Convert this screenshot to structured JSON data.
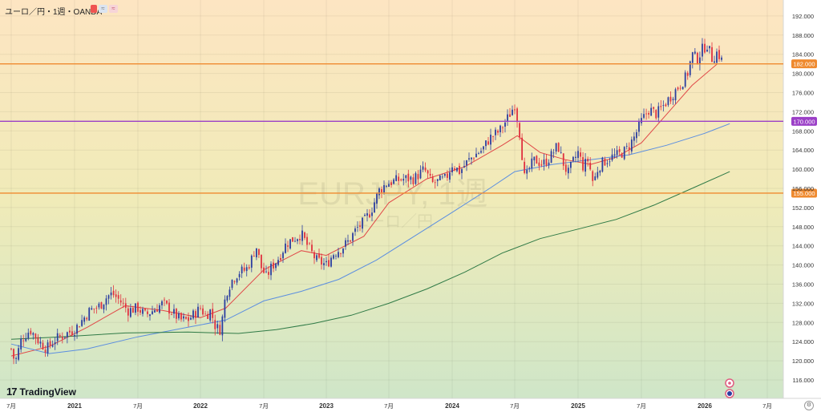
{
  "header": {
    "symbol_title": "ユーロ／円・1週・OANDA"
  },
  "logo": {
    "text": "TradingView"
  },
  "watermark": {
    "symbol": "EURJPY, 1週",
    "subtitle": "ユーロ／円"
  },
  "colors": {
    "bull": "#2b3ea0",
    "bear": "#e0303f",
    "ma_short": "#e04848",
    "ma_mid": "#5b8ee0",
    "ma_long": "#2f7a46",
    "line_orange": "#ef8a2f",
    "line_purple": "#9b40c7",
    "line_orange_low": "#ef8a2f",
    "bg_top": "#fde5c2",
    "bg_bottom": "#cfe6c8"
  },
  "chart_data": {
    "type": "candlestick",
    "symbol": "EURJPY",
    "timeframe": "1週",
    "source": "OANDA",
    "ylim": [
      113,
      193
    ],
    "y_ticks": [
      "116.000",
      "120.000",
      "124.000",
      "128.000",
      "132.000",
      "136.000",
      "140.000",
      "144.000",
      "148.000",
      "152.000",
      "156.000",
      "160.000",
      "164.000",
      "168.000",
      "172.000",
      "176.000",
      "180.000",
      "184.000",
      "188.000",
      "192.000"
    ],
    "x_ticks": [
      "7月",
      "2021",
      "7月",
      "2022",
      "7月",
      "2023",
      "7月",
      "2024",
      "7月",
      "2025",
      "7月",
      "2026",
      "7月"
    ],
    "horizontal_lines": [
      {
        "name": "upper-resistance",
        "value": 182.0,
        "label": "182.000",
        "color": "#ef8a2f"
      },
      {
        "name": "middle-line",
        "value": 170.0,
        "label": "170.000",
        "color": "#9b40c7"
      },
      {
        "name": "lower-support",
        "value": 155.0,
        "label": "155.000",
        "color": "#ef8a2f"
      }
    ],
    "close_path": [
      [
        2020.5,
        122.5
      ],
      [
        2020.53,
        119.5
      ],
      [
        2020.58,
        124.5
      ],
      [
        2020.65,
        126.5
      ],
      [
        2020.72,
        124.0
      ],
      [
        2020.78,
        122.5
      ],
      [
        2020.85,
        124.5
      ],
      [
        2020.92,
        125.5
      ],
      [
        2021.0,
        126.5
      ],
      [
        2021.06,
        128.5
      ],
      [
        2021.12,
        130.5
      ],
      [
        2021.2,
        131.5
      ],
      [
        2021.26,
        133.5
      ],
      [
        2021.3,
        134.0
      ],
      [
        2021.36,
        132.5
      ],
      [
        2021.42,
        130.5
      ],
      [
        2021.5,
        131.0
      ],
      [
        2021.56,
        129.5
      ],
      [
        2021.62,
        130.5
      ],
      [
        2021.7,
        132.0
      ],
      [
        2021.78,
        130.0
      ],
      [
        2021.84,
        128.5
      ],
      [
        2021.9,
        128.5
      ],
      [
        2021.96,
        130.0
      ],
      [
        2022.0,
        131.0
      ],
      [
        2022.04,
        129.5
      ],
      [
        2022.08,
        130.5
      ],
      [
        2022.12,
        127.0
      ],
      [
        2022.16,
        126.5
      ],
      [
        2022.2,
        134.0
      ],
      [
        2022.24,
        136.5
      ],
      [
        2022.3,
        138.5
      ],
      [
        2022.36,
        139.0
      ],
      [
        2022.4,
        141.0
      ],
      [
        2022.44,
        144.0
      ],
      [
        2022.48,
        139.5
      ],
      [
        2022.52,
        137.5
      ],
      [
        2022.56,
        139.5
      ],
      [
        2022.62,
        141.5
      ],
      [
        2022.68,
        144.5
      ],
      [
        2022.74,
        145.5
      ],
      [
        2022.8,
        146.5
      ],
      [
        2022.86,
        143.5
      ],
      [
        2022.92,
        141.0
      ],
      [
        2022.96,
        140.5
      ],
      [
        2023.0,
        140.0
      ],
      [
        2023.06,
        142.5
      ],
      [
        2023.12,
        143.5
      ],
      [
        2023.18,
        145.0
      ],
      [
        2023.24,
        147.5
      ],
      [
        2023.3,
        149.0
      ],
      [
        2023.36,
        151.5
      ],
      [
        2023.42,
        155.5
      ],
      [
        2023.48,
        157.0
      ],
      [
        2023.54,
        157.5
      ],
      [
        2023.62,
        158.0
      ],
      [
        2023.7,
        158.0
      ],
      [
        2023.78,
        160.0
      ],
      [
        2023.84,
        157.0
      ],
      [
        2023.9,
        157.5
      ],
      [
        2023.95,
        158.0
      ],
      [
        2024.0,
        161.0
      ],
      [
        2024.06,
        159.5
      ],
      [
        2024.12,
        161.5
      ],
      [
        2024.18,
        163.0
      ],
      [
        2024.24,
        164.0
      ],
      [
        2024.3,
        166.5
      ],
      [
        2024.38,
        168.0
      ],
      [
        2024.44,
        170.5
      ],
      [
        2024.5,
        173.5
      ],
      [
        2024.54,
        167.5
      ],
      [
        2024.58,
        157.5
      ],
      [
        2024.62,
        160.5
      ],
      [
        2024.66,
        162.0
      ],
      [
        2024.72,
        161.0
      ],
      [
        2024.78,
        162.5
      ],
      [
        2024.84,
        165.0
      ],
      [
        2024.88,
        161.5
      ],
      [
        2024.92,
        159.0
      ],
      [
        2024.96,
        161.5
      ],
      [
        2025.0,
        163.5
      ],
      [
        2025.04,
        160.5
      ],
      [
        2025.08,
        162.0
      ],
      [
        2025.12,
        157.0
      ],
      [
        2025.16,
        160.5
      ],
      [
        2025.2,
        161.5
      ],
      [
        2025.26,
        162.5
      ],
      [
        2025.32,
        163.0
      ],
      [
        2025.38,
        164.0
      ],
      [
        2025.44,
        166.5
      ],
      [
        2025.5,
        170.0
      ],
      [
        2025.56,
        172.5
      ],
      [
        2025.62,
        171.5
      ],
      [
        2025.68,
        173.5
      ],
      [
        2025.74,
        175.5
      ],
      [
        2025.8,
        177.5
      ],
      [
        2025.86,
        179.5
      ],
      [
        2025.9,
        184.0
      ],
      [
        2025.94,
        183.0
      ],
      [
        2025.98,
        185.0
      ],
      [
        2026.02,
        186.0
      ],
      [
        2026.06,
        183.0
      ],
      [
        2026.1,
        184.5
      ],
      [
        2026.14,
        182.5
      ]
    ],
    "series": [
      {
        "name": "MA-short",
        "points": [
          [
            2020.5,
            121.0
          ],
          [
            2020.8,
            123.0
          ],
          [
            2021.1,
            127.0
          ],
          [
            2021.4,
            131.5
          ],
          [
            2021.7,
            130.5
          ],
          [
            2022.0,
            129.0
          ],
          [
            2022.2,
            131.0
          ],
          [
            2022.5,
            139.0
          ],
          [
            2022.8,
            143.0
          ],
          [
            2023.0,
            142.0
          ],
          [
            2023.3,
            146.0
          ],
          [
            2023.5,
            153.0
          ],
          [
            2023.8,
            158.0
          ],
          [
            2024.1,
            160.5
          ],
          [
            2024.4,
            165.0
          ],
          [
            2024.52,
            167.0
          ],
          [
            2024.7,
            163.5
          ],
          [
            2024.9,
            162.0
          ],
          [
            2025.1,
            161.0
          ],
          [
            2025.3,
            162.5
          ],
          [
            2025.5,
            165.5
          ],
          [
            2025.7,
            171.5
          ],
          [
            2025.9,
            177.5
          ],
          [
            2026.1,
            182.0
          ]
        ]
      },
      {
        "name": "MA-mid",
        "points": [
          [
            2020.5,
            123.5
          ],
          [
            2020.8,
            121.5
          ],
          [
            2021.1,
            122.5
          ],
          [
            2021.5,
            125.0
          ],
          [
            2021.9,
            127.0
          ],
          [
            2022.2,
            128.5
          ],
          [
            2022.5,
            132.5
          ],
          [
            2022.8,
            134.5
          ],
          [
            2023.1,
            137.0
          ],
          [
            2023.4,
            141.0
          ],
          [
            2023.7,
            146.0
          ],
          [
            2024.0,
            151.0
          ],
          [
            2024.3,
            156.0
          ],
          [
            2024.5,
            159.5
          ],
          [
            2024.8,
            161.0
          ],
          [
            2025.1,
            162.0
          ],
          [
            2025.4,
            163.0
          ],
          [
            2025.7,
            165.0
          ],
          [
            2026.0,
            167.5
          ],
          [
            2026.2,
            169.5
          ]
        ]
      },
      {
        "name": "MA-long",
        "points": [
          [
            2020.5,
            124.5
          ],
          [
            2020.9,
            125.0
          ],
          [
            2021.4,
            125.8
          ],
          [
            2021.9,
            126.0
          ],
          [
            2022.3,
            125.7
          ],
          [
            2022.6,
            126.5
          ],
          [
            2022.9,
            127.8
          ],
          [
            2023.2,
            129.5
          ],
          [
            2023.5,
            132.0
          ],
          [
            2023.8,
            135.0
          ],
          [
            2024.1,
            138.5
          ],
          [
            2024.4,
            142.5
          ],
          [
            2024.7,
            145.5
          ],
          [
            2025.0,
            147.5
          ],
          [
            2025.3,
            149.5
          ],
          [
            2025.6,
            152.5
          ],
          [
            2025.9,
            156.0
          ],
          [
            2026.2,
            159.5
          ]
        ]
      }
    ]
  }
}
